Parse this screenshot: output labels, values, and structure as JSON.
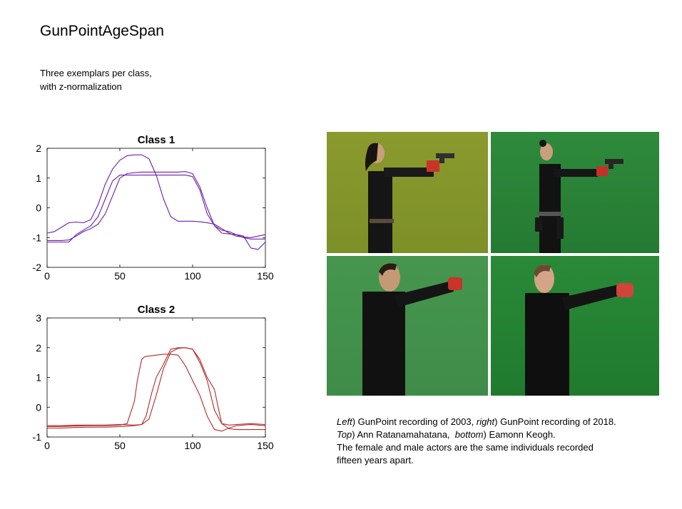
{
  "page": {
    "title": "GunPointAgeSpan",
    "subtitle": "Three exemplars per class,\nwith z-normalization"
  },
  "chart_data": [
    {
      "type": "line",
      "title": "Class 1",
      "xlim": [
        0,
        150
      ],
      "ylim": [
        -2,
        2
      ],
      "xticks": [
        0,
        50,
        100,
        150
      ],
      "yticks": [
        -2,
        -1,
        0,
        1,
        2
      ],
      "color": "#6a1fa8",
      "series": [
        {
          "x": [
            0,
            5,
            10,
            15,
            20,
            25,
            30,
            35,
            40,
            45,
            50,
            55,
            60,
            65,
            70,
            75,
            80,
            85,
            90,
            95,
            100,
            105,
            110,
            115,
            120,
            125,
            130,
            135,
            140,
            145,
            150
          ],
          "values": [
            -0.85,
            -0.8,
            -0.65,
            -0.5,
            -0.48,
            -0.5,
            -0.4,
            0.1,
            0.8,
            1.3,
            1.6,
            1.75,
            1.78,
            1.78,
            1.65,
            1.1,
            0.3,
            -0.3,
            -0.45,
            -0.45,
            -0.45,
            -0.47,
            -0.5,
            -0.55,
            -0.7,
            -0.85,
            -0.95,
            -0.98,
            -1.0,
            -0.95,
            -0.9
          ]
        },
        {
          "x": [
            0,
            5,
            10,
            15,
            20,
            25,
            30,
            35,
            40,
            45,
            50,
            55,
            60,
            65,
            70,
            75,
            80,
            85,
            90,
            95,
            100,
            105,
            110,
            115,
            120,
            125,
            130,
            135,
            140,
            145,
            150
          ],
          "values": [
            -1.1,
            -1.1,
            -1.1,
            -1.08,
            -0.95,
            -0.8,
            -0.7,
            -0.55,
            -0.2,
            0.4,
            1.0,
            1.15,
            1.18,
            1.2,
            1.2,
            1.2,
            1.2,
            1.2,
            1.2,
            1.22,
            1.15,
            0.7,
            0.0,
            -0.6,
            -0.85,
            -0.88,
            -0.9,
            -0.95,
            -1.35,
            -1.4,
            -1.15
          ]
        },
        {
          "x": [
            0,
            5,
            10,
            15,
            20,
            25,
            30,
            35,
            40,
            45,
            50,
            55,
            60,
            65,
            70,
            75,
            80,
            85,
            90,
            95,
            100,
            105,
            110,
            115,
            120,
            125,
            130,
            135,
            140,
            145,
            150
          ],
          "values": [
            -1.15,
            -1.15,
            -1.15,
            -1.15,
            -0.9,
            -0.75,
            -0.6,
            -0.3,
            0.3,
            0.9,
            1.1,
            1.1,
            1.1,
            1.1,
            1.1,
            1.1,
            1.1,
            1.1,
            1.1,
            1.1,
            1.05,
            0.6,
            -0.2,
            -0.6,
            -0.75,
            -0.8,
            -0.9,
            -1.0,
            -1.05,
            -1.05,
            -1.05
          ]
        }
      ]
    },
    {
      "type": "line",
      "title": "Class 2",
      "xlim": [
        0,
        150
      ],
      "ylim": [
        -1,
        3
      ],
      "xticks": [
        0,
        50,
        100,
        150
      ],
      "yticks": [
        -1,
        0,
        1,
        2,
        3
      ],
      "color": "#b22a2a",
      "series": [
        {
          "x": [
            0,
            10,
            20,
            30,
            40,
            50,
            55,
            60,
            62,
            65,
            67,
            70,
            75,
            80,
            85,
            90,
            95,
            100,
            105,
            110,
            115,
            120,
            125,
            130,
            140,
            150
          ],
          "values": [
            -0.65,
            -0.65,
            -0.63,
            -0.62,
            -0.62,
            -0.6,
            -0.55,
            0.2,
            0.9,
            1.6,
            1.7,
            1.72,
            1.75,
            1.78,
            1.78,
            1.75,
            1.4,
            0.9,
            0.4,
            -0.3,
            -0.75,
            -0.8,
            -0.7,
            -0.62,
            -0.58,
            -0.62
          ]
        },
        {
          "x": [
            0,
            10,
            20,
            30,
            40,
            50,
            60,
            65,
            70,
            75,
            80,
            85,
            90,
            95,
            100,
            105,
            110,
            115,
            120,
            125,
            130,
            140,
            150
          ],
          "values": [
            -0.7,
            -0.7,
            -0.68,
            -0.67,
            -0.67,
            -0.65,
            -0.62,
            -0.58,
            -0.4,
            0.4,
            1.3,
            1.85,
            1.98,
            2.0,
            1.95,
            1.5,
            0.9,
            -0.1,
            -0.55,
            -0.6,
            -0.58,
            -0.55,
            -0.58
          ]
        },
        {
          "x": [
            0,
            10,
            20,
            30,
            40,
            50,
            60,
            65,
            68,
            72,
            75,
            80,
            85,
            90,
            95,
            100,
            105,
            110,
            115,
            118,
            120,
            125,
            130,
            140,
            150
          ],
          "values": [
            -0.62,
            -0.62,
            -0.6,
            -0.6,
            -0.6,
            -0.58,
            -0.6,
            -0.58,
            -0.3,
            0.5,
            1.0,
            1.45,
            1.95,
            2.0,
            2.0,
            1.95,
            1.6,
            1.0,
            0.6,
            -0.1,
            -0.55,
            -0.72,
            -0.75,
            -0.75,
            -0.75
          ]
        }
      ]
    }
  ],
  "caption": {
    "line1_a": "Left",
    "line1_b": ") GunPoint recording of 2003, ",
    "line1_c": "right",
    "line1_d": ") GunPoint recording of 2018.",
    "line2_a": "Top",
    "line2_b": ") Ann Ratanamahatana,  ",
    "line2_c": "bottom",
    "line2_d": ") Eamonn Keogh.",
    "line3": "The female and male actors are the same individuals recorded",
    "line4": "fifteen years apart."
  }
}
